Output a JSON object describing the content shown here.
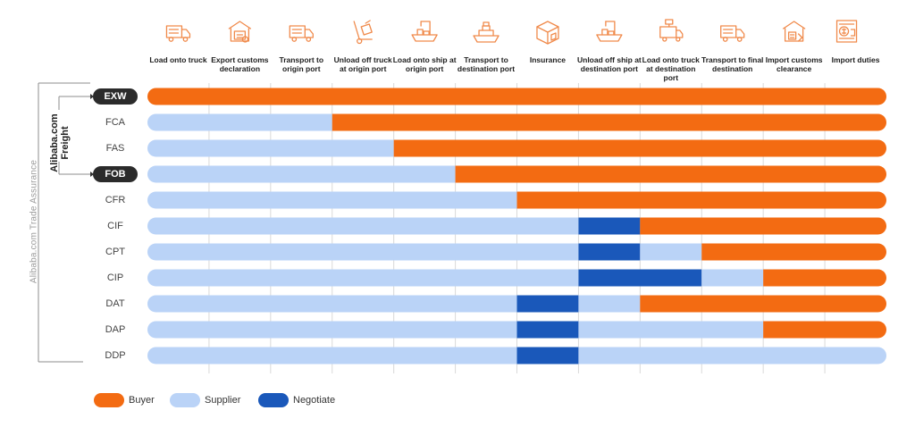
{
  "colors": {
    "buyer": "#f36b12",
    "supplier": "#bad3f7",
    "negotiate": "#1a58ba",
    "icon": "#f08a4b",
    "grid": "#d9d9d9",
    "bracket": "#8c8c8c"
  },
  "side_labels": {
    "trade_assurance": "Alibaba.com Trade Assurance",
    "freight_line1": "Alibaba.com",
    "freight_line2": "Freight"
  },
  "chart_data": {
    "type": "table",
    "title": "",
    "stages": [
      {
        "label": "Load onto truck",
        "icon": "truck-icon"
      },
      {
        "label": "Export customs declaration",
        "icon": "customs-document-icon"
      },
      {
        "label": "Transport to origin port",
        "icon": "truck-icon"
      },
      {
        "label": "Unload off truck at origin port",
        "icon": "hand-truck-icon"
      },
      {
        "label": "Load onto ship at origin port",
        "icon": "crane-ship-icon"
      },
      {
        "label": "Transport to destination port",
        "icon": "ship-icon"
      },
      {
        "label": "Insurance",
        "icon": "insurance-box-icon"
      },
      {
        "label": "Unload off ship at destination port",
        "icon": "crane-ship-icon"
      },
      {
        "label": "Load onto truck at destination port",
        "icon": "truck-loading-icon"
      },
      {
        "label": "Transport to final destination",
        "icon": "truck-icon"
      },
      {
        "label": "Import customs clearance",
        "icon": "customs-clearance-icon"
      },
      {
        "label": "Import duties",
        "icon": "duties-money-icon"
      }
    ],
    "legend": [
      {
        "key": "B",
        "label": "Buyer"
      },
      {
        "key": "S",
        "label": "Supplier"
      },
      {
        "key": "N",
        "label": "Negotiate"
      }
    ],
    "terms": [
      {
        "name": "EXW",
        "highlight": true,
        "cells": [
          "B",
          "B",
          "B",
          "B",
          "B",
          "B",
          "B",
          "B",
          "B",
          "B",
          "B",
          "B"
        ]
      },
      {
        "name": "FCA",
        "highlight": false,
        "cells": [
          "S",
          "S",
          "S",
          "B",
          "B",
          "B",
          "B",
          "B",
          "B",
          "B",
          "B",
          "B"
        ]
      },
      {
        "name": "FAS",
        "highlight": false,
        "cells": [
          "S",
          "S",
          "S",
          "S",
          "B",
          "B",
          "B",
          "B",
          "B",
          "B",
          "B",
          "B"
        ]
      },
      {
        "name": "FOB",
        "highlight": true,
        "cells": [
          "S",
          "S",
          "S",
          "S",
          "S",
          "B",
          "B",
          "B",
          "B",
          "B",
          "B",
          "B"
        ]
      },
      {
        "name": "CFR",
        "highlight": false,
        "cells": [
          "S",
          "S",
          "S",
          "S",
          "S",
          "S",
          "B",
          "B",
          "B",
          "B",
          "B",
          "B"
        ]
      },
      {
        "name": "CIF",
        "highlight": false,
        "cells": [
          "S",
          "S",
          "S",
          "S",
          "S",
          "S",
          "S",
          "N",
          "B",
          "B",
          "B",
          "B"
        ]
      },
      {
        "name": "CPT",
        "highlight": false,
        "cells": [
          "S",
          "S",
          "S",
          "S",
          "S",
          "S",
          "S",
          "N",
          "S",
          "B",
          "B",
          "B"
        ]
      },
      {
        "name": "CIP",
        "highlight": false,
        "cells": [
          "S",
          "S",
          "S",
          "S",
          "S",
          "S",
          "S",
          "N",
          "N",
          "S",
          "B",
          "B"
        ]
      },
      {
        "name": "DAT",
        "highlight": false,
        "cells": [
          "S",
          "S",
          "S",
          "S",
          "S",
          "S",
          "N",
          "S",
          "B",
          "B",
          "B",
          "B"
        ]
      },
      {
        "name": "DAP",
        "highlight": false,
        "cells": [
          "S",
          "S",
          "S",
          "S",
          "S",
          "S",
          "N",
          "S",
          "S",
          "S",
          "B",
          "B"
        ]
      },
      {
        "name": "DDP",
        "highlight": false,
        "cells": [
          "S",
          "S",
          "S",
          "S",
          "S",
          "S",
          "N",
          "S",
          "S",
          "S",
          "S",
          "S"
        ]
      }
    ]
  }
}
